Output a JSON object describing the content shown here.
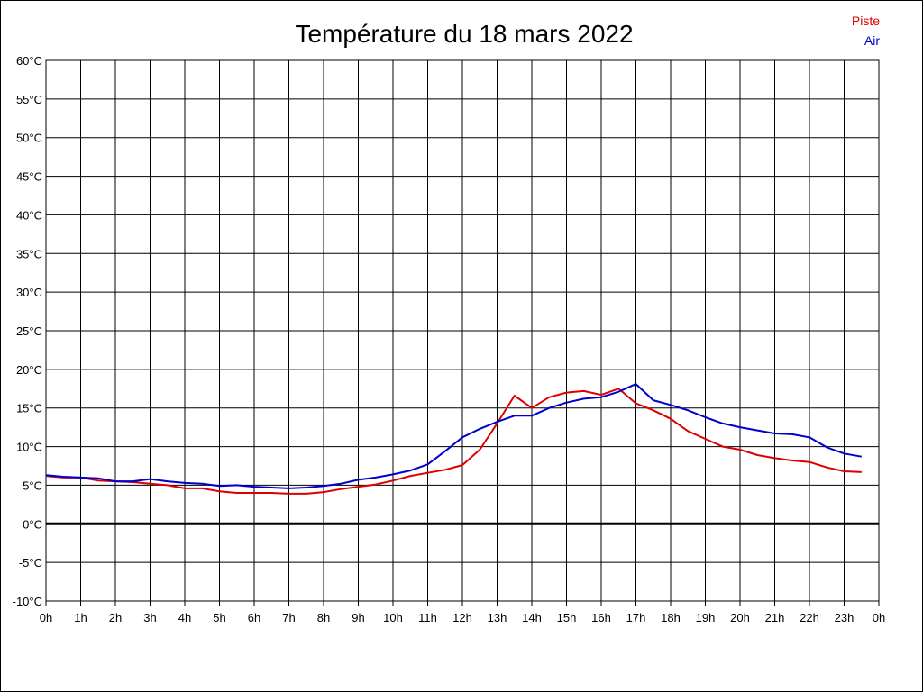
{
  "chart_data": {
    "type": "line",
    "title": "Température du 18 mars 2022",
    "xlabel": "",
    "ylabel": "",
    "x_tick_labels": [
      "0h",
      "1h",
      "2h",
      "3h",
      "4h",
      "5h",
      "6h",
      "7h",
      "8h",
      "9h",
      "10h",
      "11h",
      "12h",
      "13h",
      "14h",
      "15h",
      "16h",
      "17h",
      "18h",
      "19h",
      "20h",
      "21h",
      "22h",
      "23h",
      "0h"
    ],
    "y_tick_labels": [
      "60°C",
      "55°C",
      "50°C",
      "45°C",
      "40°C",
      "35°C",
      "30°C",
      "25°C",
      "20°C",
      "15°C",
      "10°C",
      "5°C",
      "0°C",
      "-5°C",
      "-10°C"
    ],
    "y_ticks": [
      60,
      55,
      50,
      45,
      40,
      35,
      30,
      25,
      20,
      15,
      10,
      5,
      0,
      -5,
      -10
    ],
    "xlim": [
      0,
      24
    ],
    "ylim": [
      -10,
      60
    ],
    "grid": true,
    "legend_position": "top-right",
    "series": [
      {
        "name": "Piste",
        "color": "#dd0000",
        "x": [
          0,
          0.5,
          1,
          1.5,
          2,
          2.5,
          3,
          3.5,
          4,
          4.5,
          5,
          5.5,
          6,
          6.5,
          7,
          7.5,
          8,
          8.5,
          9,
          9.5,
          10,
          10.5,
          11,
          11.5,
          12,
          12.5,
          13,
          13.5,
          14,
          14.5,
          15,
          15.5,
          16,
          16.5,
          17,
          17.5,
          18,
          18.5,
          19,
          19.5,
          20,
          20.5,
          21,
          21.5,
          22,
          22.5,
          23,
          23.5
        ],
        "values": [
          6.2,
          6.0,
          6.0,
          5.6,
          5.5,
          5.4,
          5.2,
          5.0,
          4.6,
          4.6,
          4.2,
          4.0,
          4.0,
          4.0,
          3.9,
          3.9,
          4.1,
          4.5,
          4.8,
          5.1,
          5.6,
          6.2,
          6.6,
          7.0,
          7.6,
          9.6,
          13.0,
          16.6,
          15.0,
          16.4,
          17.0,
          17.2,
          16.7,
          17.5,
          15.6,
          14.7,
          13.6,
          12.0,
          11.0,
          10.0,
          9.6,
          8.9,
          8.5,
          8.2,
          8.0,
          7.3,
          6.8,
          6.7
        ]
      },
      {
        "name": "Air",
        "color": "#0000cc",
        "x": [
          0,
          0.5,
          1,
          1.5,
          2,
          2.5,
          3,
          3.5,
          4,
          4.5,
          5,
          5.5,
          6,
          6.5,
          7,
          7.5,
          8,
          8.5,
          9,
          9.5,
          10,
          10.5,
          11,
          11.5,
          12,
          12.5,
          13,
          13.5,
          14,
          14.5,
          15,
          15.5,
          16,
          16.5,
          17,
          17.5,
          18,
          18.5,
          19,
          19.5,
          20,
          20.5,
          21,
          21.5,
          22,
          22.5,
          23,
          23.5
        ],
        "values": [
          6.3,
          6.1,
          6.0,
          5.9,
          5.5,
          5.5,
          5.8,
          5.5,
          5.3,
          5.2,
          4.9,
          5.0,
          4.8,
          4.7,
          4.6,
          4.7,
          4.9,
          5.2,
          5.7,
          6.0,
          6.4,
          6.9,
          7.7,
          9.4,
          11.2,
          12.3,
          13.2,
          14.0,
          14.0,
          15.0,
          15.7,
          16.2,
          16.4,
          17.1,
          18.1,
          16.0,
          15.4,
          14.7,
          13.8,
          13.0,
          12.5,
          12.1,
          11.7,
          11.6,
          11.2,
          9.9,
          9.1,
          8.7
        ]
      }
    ]
  }
}
